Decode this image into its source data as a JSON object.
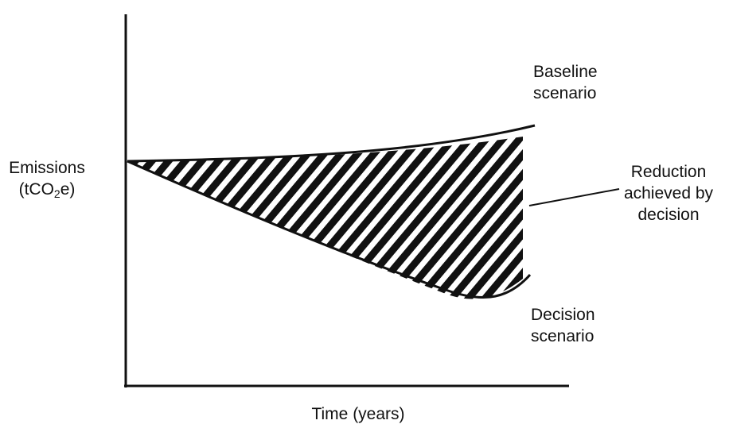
{
  "y_axis": {
    "label_line1": "Emissions",
    "label_pre": "(tCO",
    "label_sub": "2",
    "label_post": "e)"
  },
  "x_axis": {
    "label": "Time (years)"
  },
  "baseline": {
    "line1": "Baseline",
    "line2": "scenario"
  },
  "decision": {
    "line1": "Decision",
    "line2": "scenario"
  },
  "reduction": {
    "line1": "Reduction",
    "line2": "achieved by",
    "line3": "decision"
  },
  "colors": {
    "ink": "#111111",
    "background": "#ffffff"
  }
}
